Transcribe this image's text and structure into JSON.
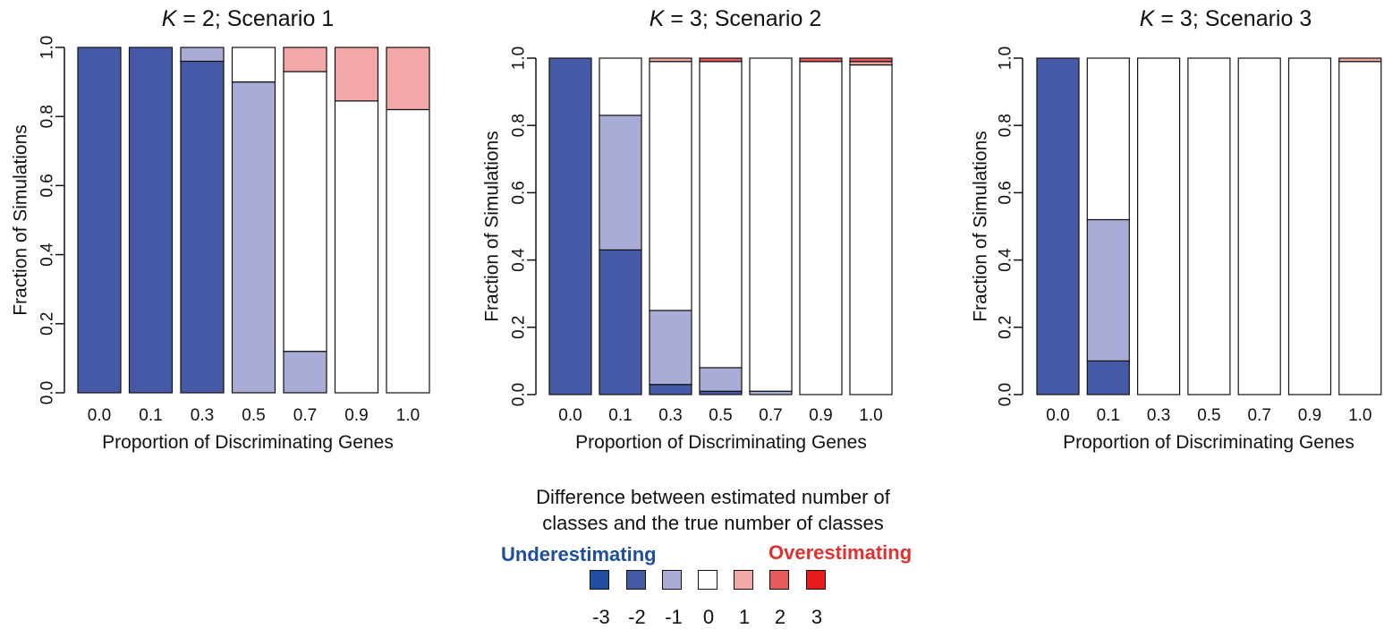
{
  "chart_data": [
    {
      "type": "bar",
      "title": "K = 2; Scenario 1",
      "title_k": "K",
      "title_rest": " = 2; Scenario 1",
      "xlabel": "Proportion of Discriminating Genes",
      "ylabel": "Fraction of Simulations",
      "stacked": true,
      "ylim": [
        0,
        1
      ],
      "yticks": [
        "0.0",
        "0.2",
        "0.4",
        "0.6",
        "0.8",
        "1.0"
      ],
      "categories": [
        "0.0",
        "0.1",
        "0.3",
        "0.5",
        "0.7",
        "0.9",
        "1.0"
      ],
      "series": [
        {
          "diff": -3,
          "color": "#1f4ea0",
          "values": [
            0,
            0,
            0,
            0,
            0,
            0,
            0
          ]
        },
        {
          "diff": -2,
          "color": "#4659a7",
          "values": [
            1.0,
            1.0,
            0.96,
            0,
            0,
            0,
            0
          ]
        },
        {
          "diff": -1,
          "color": "#a9acd6",
          "values": [
            0,
            0,
            0.04,
            0.9,
            0.12,
            0,
            0
          ]
        },
        {
          "diff": 0,
          "color": "#ffffff",
          "values": [
            0,
            0,
            0,
            0.1,
            0.81,
            0.845,
            0.82
          ]
        },
        {
          "diff": 1,
          "color": "#f3a8a8",
          "values": [
            0,
            0,
            0,
            0,
            0.07,
            0.155,
            0.18
          ]
        },
        {
          "diff": 2,
          "color": "#e85a5a",
          "values": [
            0,
            0,
            0,
            0,
            0,
            0,
            0
          ]
        },
        {
          "diff": 3,
          "color": "#e8191b",
          "values": [
            0,
            0,
            0,
            0,
            0,
            0,
            0
          ]
        }
      ]
    },
    {
      "type": "bar",
      "title": "K = 3; Scenario 2",
      "title_k": "K",
      "title_rest": " = 3; Scenario 2",
      "xlabel": "Proportion of Discriminating Genes",
      "ylabel": "Fraction of Simulations",
      "stacked": true,
      "ylim": [
        0,
        1
      ],
      "yticks": [
        "0.0",
        "0.2",
        "0.4",
        "0.6",
        "0.8",
        "1.0"
      ],
      "categories": [
        "0.0",
        "0.1",
        "0.3",
        "0.5",
        "0.7",
        "0.9",
        "1.0"
      ],
      "series": [
        {
          "diff": -3,
          "color": "#1f4ea0",
          "values": [
            0,
            0,
            0,
            0,
            0,
            0,
            0
          ]
        },
        {
          "diff": -2,
          "color": "#4659a7",
          "values": [
            1.0,
            0.43,
            0.03,
            0.01,
            0,
            0,
            0
          ]
        },
        {
          "diff": -1,
          "color": "#a9acd6",
          "values": [
            0,
            0.4,
            0.22,
            0.07,
            0.01,
            0,
            0
          ]
        },
        {
          "diff": 0,
          "color": "#ffffff",
          "values": [
            0,
            0.17,
            0.74,
            0.91,
            0.99,
            0.99,
            0.98
          ]
        },
        {
          "diff": 1,
          "color": "#f3a8a8",
          "values": [
            0,
            0,
            0.01,
            0,
            0,
            0,
            0.01
          ]
        },
        {
          "diff": 2,
          "color": "#e85a5a",
          "values": [
            0,
            0,
            0,
            0.01,
            0,
            0.01,
            0.01
          ]
        },
        {
          "diff": 3,
          "color": "#e8191b",
          "values": [
            0,
            0,
            0,
            0,
            0,
            0,
            0
          ]
        }
      ]
    },
    {
      "type": "bar",
      "title": "K = 3; Scenario 3",
      "title_k": "K",
      "title_rest": " = 3; Scenario 3",
      "xlabel": "Proportion of Discriminating Genes",
      "ylabel": "Fraction of Simulations",
      "stacked": true,
      "ylim": [
        0,
        1
      ],
      "yticks": [
        "0.0",
        "0.2",
        "0.4",
        "0.6",
        "0.8",
        "1.0"
      ],
      "categories": [
        "0.0",
        "0.1",
        "0.3",
        "0.5",
        "0.7",
        "0.9",
        "1.0"
      ],
      "series": [
        {
          "diff": -3,
          "color": "#1f4ea0",
          "values": [
            0,
            0,
            0,
            0,
            0,
            0,
            0
          ]
        },
        {
          "diff": -2,
          "color": "#4659a7",
          "values": [
            1.0,
            0.1,
            0,
            0,
            0,
            0,
            0
          ]
        },
        {
          "diff": -1,
          "color": "#a9acd6",
          "values": [
            0,
            0.42,
            0,
            0,
            0,
            0,
            0
          ]
        },
        {
          "diff": 0,
          "color": "#ffffff",
          "values": [
            0,
            0.48,
            1.0,
            1.0,
            1.0,
            1.0,
            0.99
          ]
        },
        {
          "diff": 1,
          "color": "#f3a8a8",
          "values": [
            0,
            0,
            0,
            0,
            0,
            0,
            0.01
          ]
        },
        {
          "diff": 2,
          "color": "#e85a5a",
          "values": [
            0,
            0,
            0,
            0,
            0,
            0,
            0
          ]
        },
        {
          "diff": 3,
          "color": "#e8191b",
          "values": [
            0,
            0,
            0,
            0,
            0,
            0,
            0
          ]
        }
      ]
    }
  ],
  "legend": {
    "title_line1": "Difference between estimated number of",
    "title_line2": "classes and the true number of classes",
    "under_label": "Underestimating",
    "over_label": "Overestimating",
    "under_color": "#1f4e9c",
    "over_color": "#e03030",
    "items": [
      {
        "label": "-3",
        "color": "#1f4ea0"
      },
      {
        "label": "-2",
        "color": "#4659a7"
      },
      {
        "label": "-1",
        "color": "#a9acd6"
      },
      {
        "label": "0",
        "color": "#ffffff"
      },
      {
        "label": "1",
        "color": "#f3a8a8"
      },
      {
        "label": "2",
        "color": "#e85a5a"
      },
      {
        "label": "3",
        "color": "#e8191b"
      }
    ]
  }
}
